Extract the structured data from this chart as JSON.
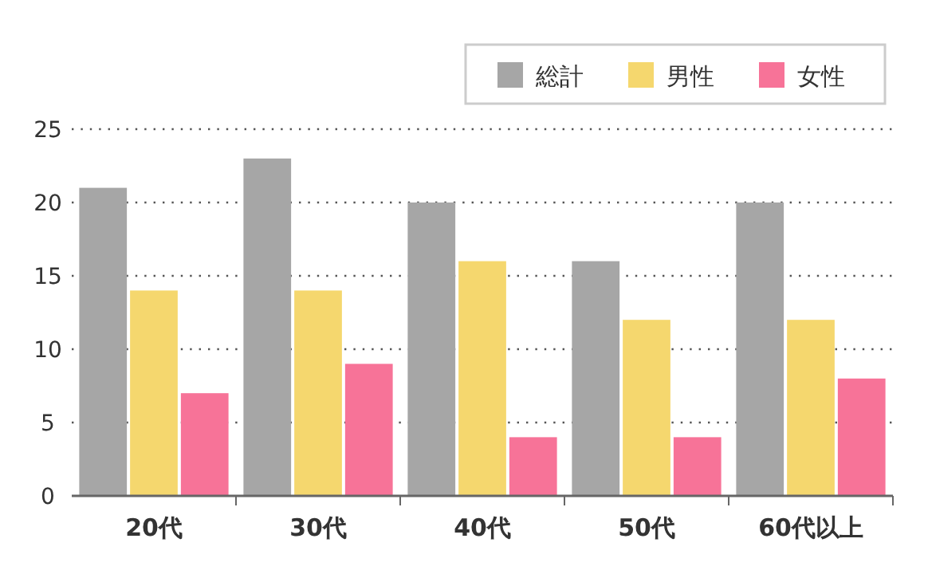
{
  "chart_data": {
    "type": "bar",
    "categories": [
      "20代",
      "30代",
      "40代",
      "50代",
      "60代以上"
    ],
    "series": [
      {
        "name": "総計",
        "color": "#a6a6a6",
        "values": [
          21,
          23,
          20,
          16,
          20
        ]
      },
      {
        "name": "男性",
        "color": "#f5d76e",
        "values": [
          14,
          14,
          16,
          12,
          12
        ]
      },
      {
        "name": "女性",
        "color": "#f77398",
        "values": [
          7,
          9,
          4,
          4,
          8
        ]
      }
    ],
    "ylim": [
      0,
      25
    ],
    "yticks": [
      0,
      5,
      10,
      15,
      20,
      25
    ],
    "grid": "y",
    "legend": "top right"
  }
}
